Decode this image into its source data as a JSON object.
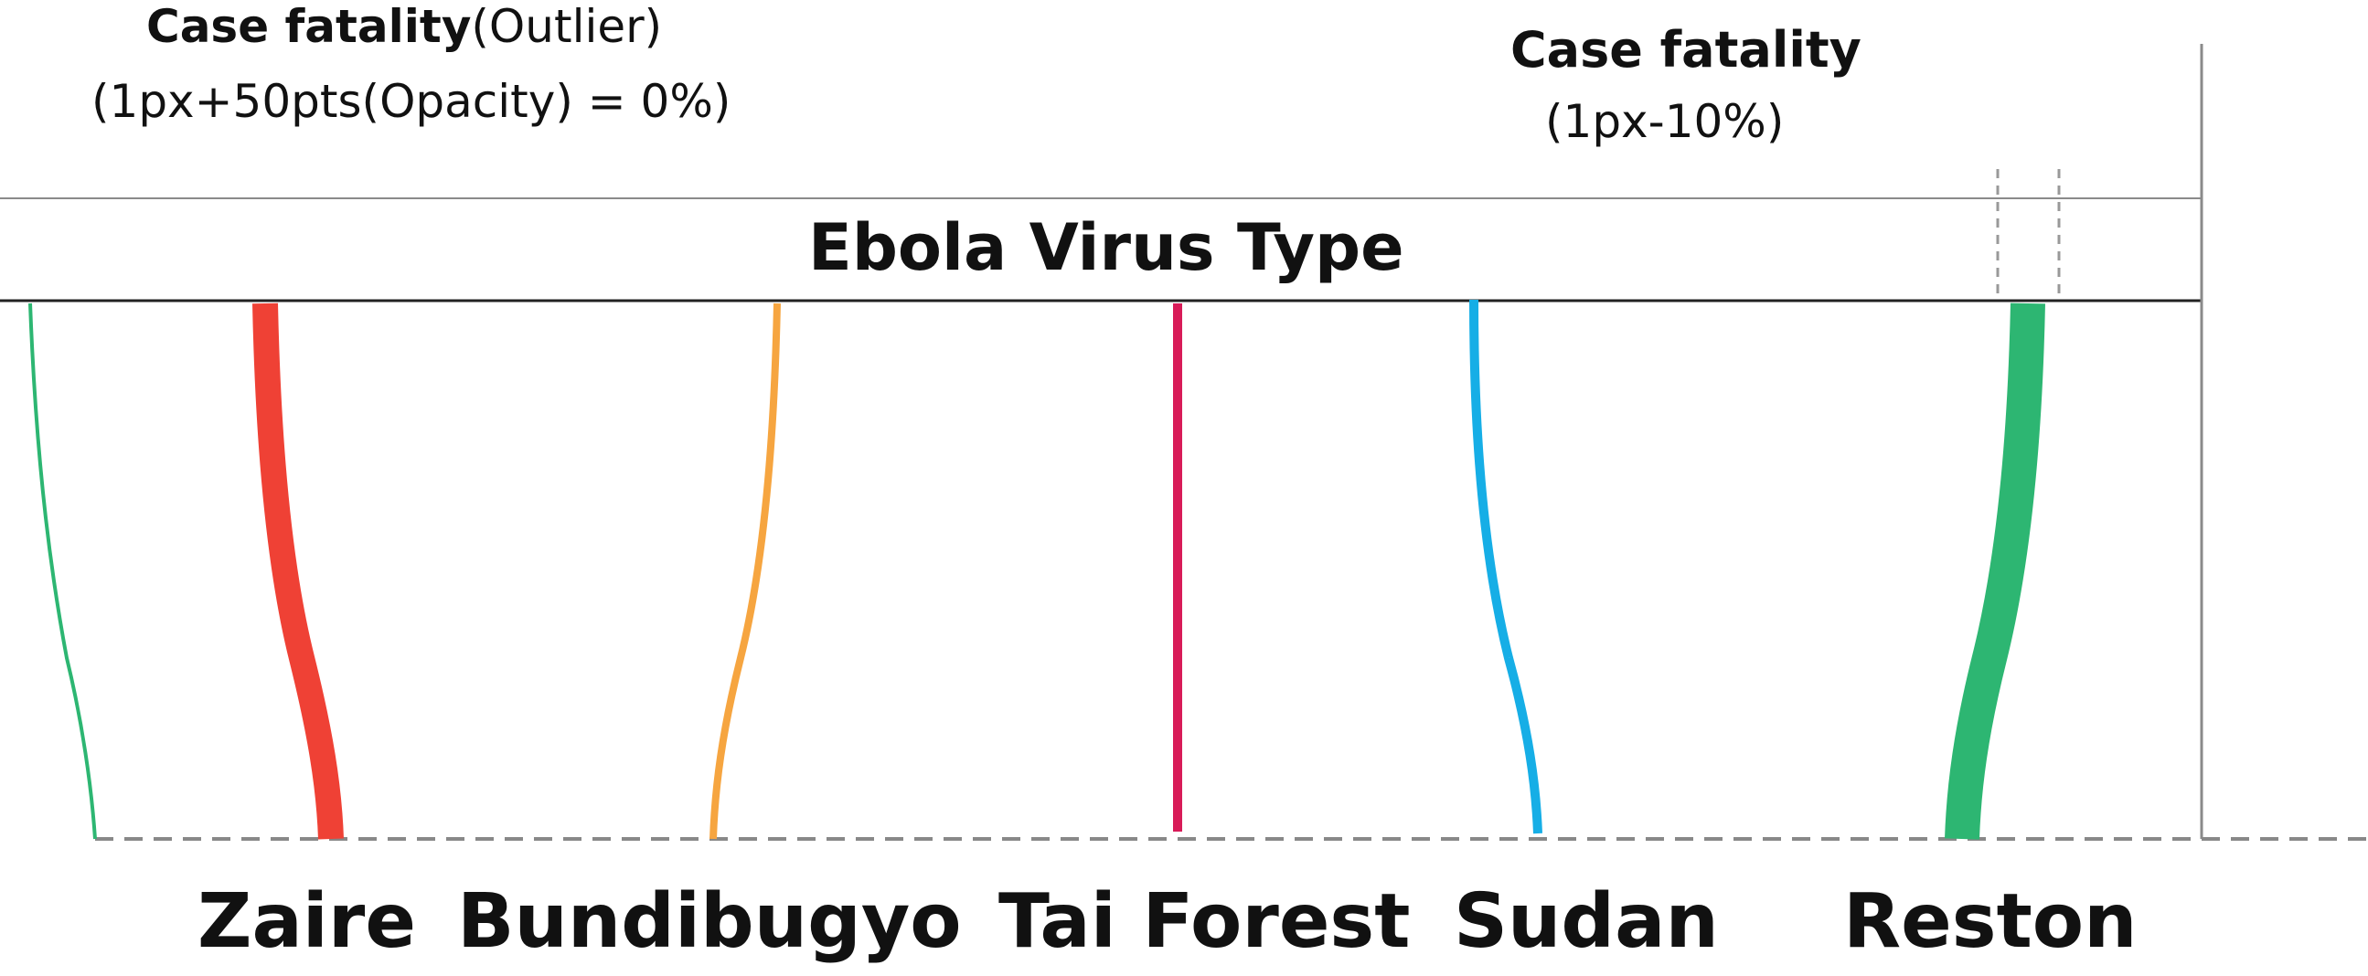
{
  "annotations": {
    "outlier": {
      "title_bold": "Case fatality",
      "title_suffix": "(Outlier)",
      "subtitle": "(1px+50pts(Opacity) = 0%)"
    },
    "case_fatality": {
      "title": "Case fatality",
      "subtitle": "(1px-10%)"
    }
  },
  "band": {
    "title": "Ebola Virus Type"
  },
  "virus_types": [
    {
      "name": "Zaire",
      "color": "#ef4135"
    },
    {
      "name": "Bundibugyo",
      "color": "#f6a540"
    },
    {
      "name": "Tai Forest",
      "color": "#d81b58"
    },
    {
      "name": "Sudan",
      "color": "#16aee6"
    },
    {
      "name": "Reston",
      "color": "#2db672"
    }
  ],
  "outlier_line_color": "#2db672"
}
